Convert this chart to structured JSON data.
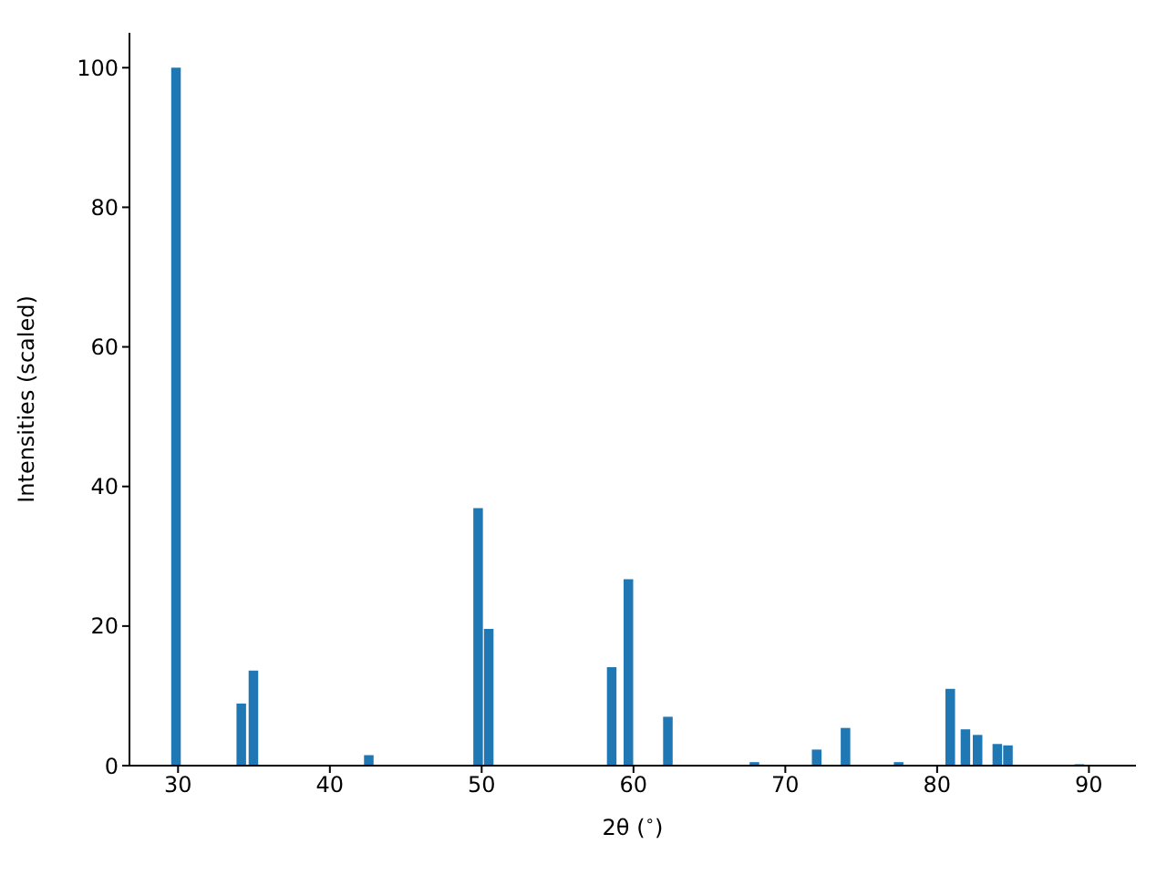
{
  "chart_data": {
    "type": "bar",
    "xlabel": "2θ ($^{∘}$)",
    "ylabel": "Intensities (scaled)",
    "x": [
      29.9,
      34.2,
      35.0,
      42.6,
      49.8,
      50.5,
      58.6,
      59.7,
      62.3,
      68.0,
      72.1,
      74.0,
      77.5,
      80.9,
      81.9,
      82.7,
      84.0,
      84.7,
      89.4
    ],
    "values": [
      100,
      8.9,
      13.6,
      1.5,
      36.9,
      19.6,
      14.1,
      26.7,
      7.0,
      0.5,
      2.3,
      5.4,
      0.5,
      11.0,
      5.2,
      4.4,
      3.1,
      2.9,
      0.2
    ],
    "color": "#1f77b4",
    "xlim": [
      26.8,
      93.1
    ],
    "xticks": [
      30,
      40,
      50,
      60,
      70,
      80,
      90
    ],
    "ylim": [
      0,
      105
    ],
    "yticks": [
      0,
      20,
      40,
      60,
      80,
      100
    ],
    "grid": false,
    "legend": false
  }
}
